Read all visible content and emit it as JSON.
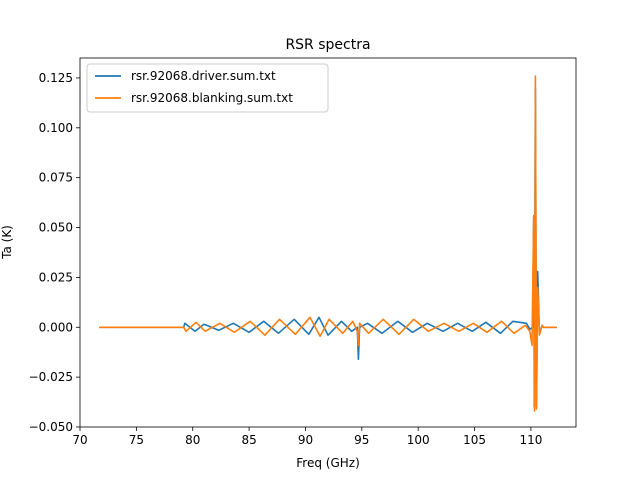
{
  "chart_data": {
    "type": "line",
    "title": "RSR spectra",
    "xlabel": "Freq  (GHz)",
    "ylabel": "Ta (K)",
    "xlim": [
      70,
      114
    ],
    "ylim": [
      -0.05,
      0.135
    ],
    "xticks": [
      70,
      75,
      80,
      85,
      90,
      95,
      100,
      105,
      110
    ],
    "xtick_labels": [
      "70",
      "75",
      "80",
      "85",
      "90",
      "95",
      "100",
      "105",
      "110"
    ],
    "yticks": [
      -0.05,
      -0.025,
      0.0,
      0.025,
      0.05,
      0.075,
      0.1,
      0.125
    ],
    "ytick_labels": [
      "−0.050",
      "−0.025",
      "0.000",
      "0.025",
      "0.050",
      "0.075",
      "0.100",
      "0.125"
    ],
    "grid": false,
    "legend_position": "upper-left",
    "series": [
      {
        "name": "rsr.92068.driver.sum.txt",
        "color": "#1f77b4",
        "x": [
          71.7,
          79.2,
          79.3,
          80.2,
          81.0,
          82.3,
          83.6,
          85.0,
          86.3,
          87.6,
          89.0,
          90.3,
          91.2,
          92.0,
          93.2,
          94.1,
          94.6,
          94.7,
          94.8,
          95.5,
          96.8,
          98.2,
          99.5,
          100.8,
          102.2,
          103.5,
          104.8,
          106.0,
          107.3,
          108.4,
          109.6,
          109.9,
          110.15,
          110.25,
          110.3,
          110.4,
          110.5,
          110.6,
          110.75,
          111.0,
          111.1,
          112.3
        ],
        "y": [
          0.0,
          0.0,
          0.002,
          -0.002,
          0.0015,
          -0.0015,
          0.002,
          -0.0025,
          0.003,
          -0.003,
          0.004,
          -0.0035,
          0.005,
          -0.004,
          0.003,
          -0.002,
          0.0,
          -0.016,
          0.0,
          0.002,
          -0.003,
          0.003,
          -0.0025,
          0.002,
          -0.002,
          0.002,
          -0.002,
          0.0025,
          -0.003,
          0.003,
          0.002,
          -0.001,
          0.0,
          0.055,
          -0.04,
          0.12,
          -0.04,
          0.028,
          -0.003,
          0.001,
          0.0,
          0.0
        ]
      },
      {
        "name": "rsr.92068.blanking.sum.txt",
        "color": "#ff7f0e",
        "x": [
          71.7,
          79.2,
          79.4,
          80.3,
          81.1,
          82.4,
          83.7,
          85.1,
          86.4,
          87.7,
          89.1,
          90.4,
          91.3,
          92.1,
          93.3,
          94.2,
          94.6,
          94.7,
          94.8,
          95.6,
          96.9,
          98.3,
          99.6,
          100.9,
          102.3,
          103.6,
          104.9,
          106.1,
          107.4,
          108.5,
          109.5,
          109.9,
          110.1,
          110.25,
          110.32,
          110.4,
          110.5,
          110.6,
          110.75,
          111.0,
          111.1,
          112.3
        ],
        "y": [
          0.0,
          0.0,
          -0.002,
          0.0025,
          -0.002,
          0.002,
          -0.0025,
          0.003,
          -0.004,
          0.004,
          -0.0035,
          0.005,
          -0.0045,
          0.004,
          -0.003,
          0.003,
          -0.002,
          -0.009,
          0.002,
          -0.003,
          0.004,
          -0.0035,
          0.004,
          -0.002,
          0.002,
          -0.002,
          0.002,
          -0.0025,
          0.003,
          -0.003,
          0.001,
          -0.002,
          -0.009,
          0.056,
          -0.042,
          0.126,
          -0.041,
          0.02,
          -0.004,
          0.001,
          0.0,
          0.0
        ]
      }
    ]
  }
}
